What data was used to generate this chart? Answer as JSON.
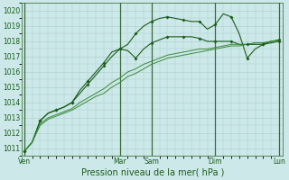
{
  "title": "",
  "xlabel": "Pression niveau de la mer( hPa )",
  "bg_color": "#cce8e8",
  "grid_color": "#aacccc",
  "line_color_dark": "#1a5c1a",
  "line_color_med": "#2a7a2a",
  "line_color_light": "#4aaa4a",
  "ylim": [
    1010.5,
    1020.5
  ],
  "yticks": [
    1011,
    1012,
    1013,
    1014,
    1015,
    1016,
    1017,
    1018,
    1019,
    1020
  ],
  "day_labels": [
    "Ven",
    "Mar",
    "Sam",
    "Dim",
    "Lun"
  ],
  "day_positions": [
    0,
    12,
    16,
    24,
    32
  ],
  "xlim": [
    -0.3,
    32.5
  ],
  "series": [
    {
      "y": [
        1010.8,
        1011.4,
        1012.8,
        1013.3,
        1013.5,
        1013.7,
        1014.0,
        1014.8,
        1015.4,
        1016.0,
        1016.6,
        1017.3,
        1017.5,
        1017.8,
        1018.5,
        1019.0,
        1019.3,
        1019.5,
        1019.6,
        1019.5,
        1019.4,
        1019.3,
        1019.3,
        1018.8,
        1019.1,
        1019.8,
        1019.6,
        1018.5,
        1016.9,
        1017.5,
        1017.8,
        1018.0,
        1018.1
      ],
      "color": "#1a5c1a",
      "lw": 0.8,
      "markers": true
    },
    {
      "y": [
        1010.8,
        1011.4,
        1012.8,
        1013.3,
        1013.5,
        1013.7,
        1014.0,
        1014.6,
        1015.2,
        1015.8,
        1016.4,
        1017.0,
        1017.5,
        1017.4,
        1016.9,
        1017.5,
        1017.9,
        1018.1,
        1018.3,
        1018.3,
        1018.3,
        1018.3,
        1018.2,
        1018.0,
        1018.0,
        1018.0,
        1018.0,
        1017.8,
        1017.8,
        1017.8,
        1017.8,
        1017.9,
        1018.0
      ],
      "color": "#1a5c1a",
      "lw": 0.8,
      "markers": true
    },
    {
      "y": [
        1010.8,
        1011.4,
        1012.6,
        1013.0,
        1013.2,
        1013.4,
        1013.6,
        1014.0,
        1014.3,
        1014.6,
        1014.9,
        1015.3,
        1015.6,
        1016.0,
        1016.2,
        1016.5,
        1016.7,
        1016.9,
        1017.1,
        1017.2,
        1017.3,
        1017.4,
        1017.5,
        1017.5,
        1017.6,
        1017.7,
        1017.8,
        1017.8,
        1017.8,
        1017.9,
        1017.9,
        1018.0,
        1018.0
      ],
      "color": "#3a8a3a",
      "lw": 0.7,
      "markers": false
    },
    {
      "y": [
        1010.8,
        1011.4,
        1012.5,
        1012.9,
        1013.1,
        1013.3,
        1013.5,
        1013.8,
        1014.1,
        1014.4,
        1014.6,
        1015.0,
        1015.3,
        1015.7,
        1015.9,
        1016.2,
        1016.5,
        1016.7,
        1016.9,
        1017.0,
        1017.1,
        1017.2,
        1017.3,
        1017.4,
        1017.5,
        1017.6,
        1017.7,
        1017.7,
        1017.8,
        1017.9,
        1017.9,
        1018.0,
        1018.0
      ],
      "color": "#3a8a3a",
      "lw": 0.7,
      "markers": false
    }
  ],
  "marker_interval": 2
}
